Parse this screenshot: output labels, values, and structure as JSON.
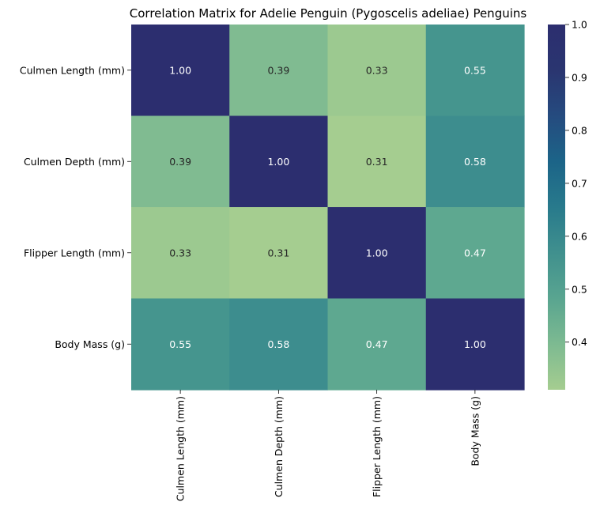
{
  "chart_data": {
    "type": "heatmap",
    "title": "Correlation Matrix for Adelie Penguin (Pygoscelis adeliae) Penguins",
    "rows": [
      "Culmen Length (mm)",
      "Culmen Depth (mm)",
      "Flipper Length (mm)",
      "Body Mass (g)"
    ],
    "columns": [
      "Culmen Length (mm)",
      "Culmen Depth (mm)",
      "Flipper Length (mm)",
      "Body Mass (g)"
    ],
    "values": [
      [
        1.0,
        0.39,
        0.33,
        0.55
      ],
      [
        0.39,
        1.0,
        0.31,
        0.58
      ],
      [
        0.33,
        0.31,
        1.0,
        0.47
      ],
      [
        0.55,
        0.58,
        0.47,
        1.0
      ]
    ],
    "value_format": "0.00",
    "colormap": "crest",
    "colorbar": {
      "range": [
        0.31,
        1.0
      ],
      "ticks": [
        "0.4",
        "0.5",
        "0.6",
        "0.7",
        "0.8",
        "0.9",
        "1.0"
      ],
      "tick_values": [
        0.4,
        0.5,
        0.6,
        0.7,
        0.8,
        0.9,
        1.0
      ]
    },
    "colormap_stops": [
      "#a5cd90",
      "#7dba91",
      "#59a590",
      "#40908e",
      "#287a8c",
      "#1c6488",
      "#254b7f",
      "#2a3570",
      "#2c2e6f"
    ]
  }
}
